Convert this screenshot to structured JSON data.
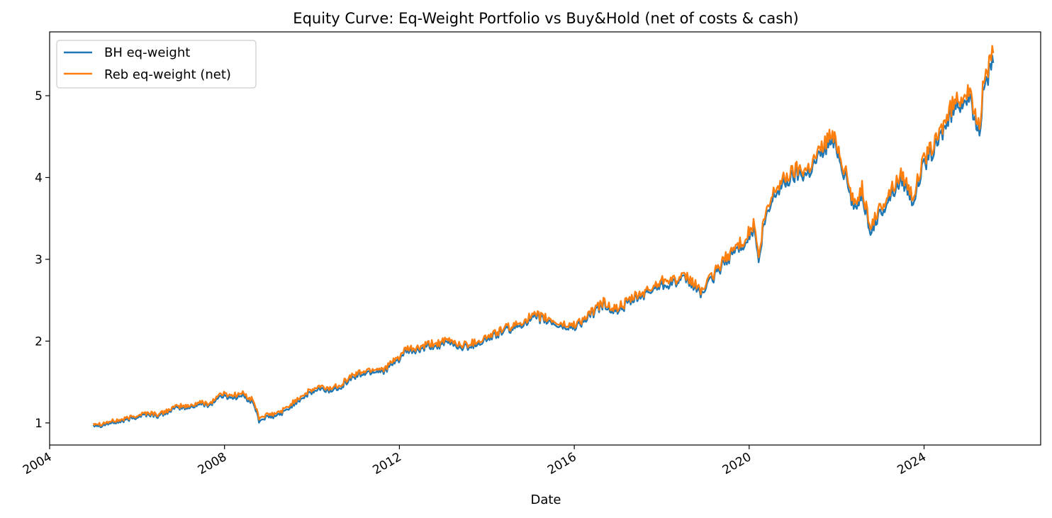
{
  "chart_data": {
    "type": "line",
    "title": "Equity Curve: Eq-Weight Portfolio vs Buy&Hold (net of costs & cash)",
    "xlabel": "Date",
    "ylabel": "",
    "xlim": [
      "2004-01-01",
      "2026-09-01"
    ],
    "ylim": [
      0.73,
      5.78
    ],
    "x_ticks": [
      "2004",
      "2008",
      "2012",
      "2016",
      "2020",
      "2024"
    ],
    "y_ticks": [
      1,
      2,
      3,
      4,
      5
    ],
    "grid": false,
    "legend_position": "top-left",
    "series": [
      {
        "name": "BH eq-weight",
        "color": "#1f77b4",
        "points": [
          [
            "2005-01-01",
            0.98
          ],
          [
            "2005-03-01",
            0.97
          ],
          [
            "2005-06-01",
            1.0
          ],
          [
            "2005-09-01",
            1.02
          ],
          [
            "2005-12-01",
            1.06
          ],
          [
            "2006-03-01",
            1.1
          ],
          [
            "2006-05-01",
            1.1
          ],
          [
            "2006-07-01",
            1.08
          ],
          [
            "2006-10-01",
            1.15
          ],
          [
            "2007-01-01",
            1.19
          ],
          [
            "2007-03-01",
            1.18
          ],
          [
            "2007-06-01",
            1.23
          ],
          [
            "2007-09-01",
            1.22
          ],
          [
            "2007-12-01",
            1.33
          ],
          [
            "2008-03-01",
            1.31
          ],
          [
            "2008-06-01",
            1.33
          ],
          [
            "2008-09-01",
            1.24
          ],
          [
            "2008-10-15",
            1.02
          ],
          [
            "2008-12-01",
            1.06
          ],
          [
            "2009-03-01",
            1.08
          ],
          [
            "2009-06-01",
            1.15
          ],
          [
            "2009-09-01",
            1.27
          ],
          [
            "2009-12-01",
            1.35
          ],
          [
            "2010-03-01",
            1.41
          ],
          [
            "2010-06-01",
            1.39
          ],
          [
            "2010-09-01",
            1.45
          ],
          [
            "2010-12-01",
            1.55
          ],
          [
            "2011-03-01",
            1.6
          ],
          [
            "2011-06-01",
            1.63
          ],
          [
            "2011-09-01",
            1.64
          ],
          [
            "2011-12-01",
            1.74
          ],
          [
            "2012-03-01",
            1.87
          ],
          [
            "2012-06-01",
            1.88
          ],
          [
            "2012-09-01",
            1.93
          ],
          [
            "2012-12-01",
            1.95
          ],
          [
            "2013-03-01",
            1.98
          ],
          [
            "2013-06-01",
            1.92
          ],
          [
            "2013-09-01",
            1.95
          ],
          [
            "2013-12-01",
            2.0
          ],
          [
            "2014-03-01",
            2.06
          ],
          [
            "2014-06-01",
            2.13
          ],
          [
            "2014-09-01",
            2.16
          ],
          [
            "2014-12-01",
            2.25
          ],
          [
            "2015-03-01",
            2.28
          ],
          [
            "2015-06-01",
            2.24
          ],
          [
            "2015-09-01",
            2.18
          ],
          [
            "2015-12-01",
            2.16
          ],
          [
            "2016-03-01",
            2.22
          ],
          [
            "2016-06-01",
            2.33
          ],
          [
            "2016-09-01",
            2.45
          ],
          [
            "2016-12-01",
            2.36
          ],
          [
            "2017-03-01",
            2.43
          ],
          [
            "2017-06-01",
            2.52
          ],
          [
            "2017-09-01",
            2.58
          ],
          [
            "2017-12-01",
            2.68
          ],
          [
            "2018-02-01",
            2.7
          ],
          [
            "2018-05-01",
            2.72
          ],
          [
            "2018-08-01",
            2.75
          ],
          [
            "2018-12-01",
            2.58
          ],
          [
            "2019-03-01",
            2.76
          ],
          [
            "2019-06-01",
            2.95
          ],
          [
            "2019-09-01",
            3.1
          ],
          [
            "2019-12-01",
            3.22
          ],
          [
            "2020-02-15",
            3.38
          ],
          [
            "2020-03-20",
            2.93
          ],
          [
            "2020-05-01",
            3.4
          ],
          [
            "2020-08-01",
            3.8
          ],
          [
            "2020-11-01",
            3.95
          ],
          [
            "2021-02-01",
            4.05
          ],
          [
            "2021-05-01",
            4.05
          ],
          [
            "2021-08-01",
            4.25
          ],
          [
            "2021-11-01",
            4.45
          ],
          [
            "2022-01-01",
            4.38
          ],
          [
            "2022-03-01",
            4.08
          ],
          [
            "2022-06-01",
            3.6
          ],
          [
            "2022-08-01",
            3.85
          ],
          [
            "2022-10-01",
            3.33
          ],
          [
            "2023-01-01",
            3.55
          ],
          [
            "2023-04-01",
            3.8
          ],
          [
            "2023-07-01",
            3.98
          ],
          [
            "2023-10-01",
            3.72
          ],
          [
            "2024-01-01",
            4.15
          ],
          [
            "2024-04-01",
            4.35
          ],
          [
            "2024-07-01",
            4.65
          ],
          [
            "2024-10-01",
            4.9
          ],
          [
            "2025-01-01",
            4.97
          ],
          [
            "2025-04-08",
            4.58
          ],
          [
            "2025-05-15",
            5.12
          ],
          [
            "2025-08-01",
            5.4
          ]
        ]
      },
      {
        "name": "Reb eq-weight (net)",
        "color": "#ff7f0e",
        "points": [
          [
            "2005-01-01",
            1.0
          ],
          [
            "2005-03-01",
            0.99
          ],
          [
            "2005-06-01",
            1.02
          ],
          [
            "2005-09-01",
            1.04
          ],
          [
            "2005-12-01",
            1.08
          ],
          [
            "2006-03-01",
            1.12
          ],
          [
            "2006-05-01",
            1.12
          ],
          [
            "2006-07-01",
            1.1
          ],
          [
            "2006-10-01",
            1.17
          ],
          [
            "2007-01-01",
            1.21
          ],
          [
            "2007-03-01",
            1.2
          ],
          [
            "2007-06-01",
            1.25
          ],
          [
            "2007-09-01",
            1.24
          ],
          [
            "2007-12-01",
            1.36
          ],
          [
            "2008-03-01",
            1.34
          ],
          [
            "2008-06-01",
            1.36
          ],
          [
            "2008-09-01",
            1.27
          ],
          [
            "2008-10-15",
            1.06
          ],
          [
            "2008-12-01",
            1.09
          ],
          [
            "2009-03-01",
            1.11
          ],
          [
            "2009-06-01",
            1.18
          ],
          [
            "2009-09-01",
            1.3
          ],
          [
            "2009-12-01",
            1.38
          ],
          [
            "2010-03-01",
            1.44
          ],
          [
            "2010-06-01",
            1.42
          ],
          [
            "2010-09-01",
            1.48
          ],
          [
            "2010-12-01",
            1.58
          ],
          [
            "2011-03-01",
            1.63
          ],
          [
            "2011-06-01",
            1.66
          ],
          [
            "2011-09-01",
            1.67
          ],
          [
            "2011-12-01",
            1.77
          ],
          [
            "2012-03-01",
            1.9
          ],
          [
            "2012-06-01",
            1.91
          ],
          [
            "2012-09-01",
            1.96
          ],
          [
            "2012-12-01",
            1.98
          ],
          [
            "2013-03-01",
            2.01
          ],
          [
            "2013-06-01",
            1.95
          ],
          [
            "2013-09-01",
            1.98
          ],
          [
            "2013-12-01",
            2.03
          ],
          [
            "2014-03-01",
            2.09
          ],
          [
            "2014-06-01",
            2.16
          ],
          [
            "2014-09-01",
            2.19
          ],
          [
            "2014-12-01",
            2.28
          ],
          [
            "2015-03-01",
            2.31
          ],
          [
            "2015-06-01",
            2.27
          ],
          [
            "2015-09-01",
            2.21
          ],
          [
            "2015-12-01",
            2.19
          ],
          [
            "2016-03-01",
            2.25
          ],
          [
            "2016-06-01",
            2.36
          ],
          [
            "2016-09-01",
            2.48
          ],
          [
            "2016-12-01",
            2.39
          ],
          [
            "2017-03-01",
            2.46
          ],
          [
            "2017-06-01",
            2.55
          ],
          [
            "2017-09-01",
            2.61
          ],
          [
            "2017-12-01",
            2.71
          ],
          [
            "2018-02-01",
            2.78
          ],
          [
            "2018-05-01",
            2.75
          ],
          [
            "2018-08-01",
            2.78
          ],
          [
            "2018-12-01",
            2.62
          ],
          [
            "2019-03-01",
            2.8
          ],
          [
            "2019-06-01",
            2.99
          ],
          [
            "2019-09-01",
            3.14
          ],
          [
            "2019-12-01",
            3.26
          ],
          [
            "2020-02-15",
            3.44
          ],
          [
            "2020-03-20",
            2.99
          ],
          [
            "2020-05-01",
            3.46
          ],
          [
            "2020-08-01",
            3.86
          ],
          [
            "2020-11-01",
            4.01
          ],
          [
            "2021-02-01",
            4.11
          ],
          [
            "2021-05-01",
            4.11
          ],
          [
            "2021-08-01",
            4.31
          ],
          [
            "2021-11-01",
            4.52
          ],
          [
            "2022-01-01",
            4.44
          ],
          [
            "2022-03-01",
            4.14
          ],
          [
            "2022-06-01",
            3.66
          ],
          [
            "2022-08-01",
            3.91
          ],
          [
            "2022-10-01",
            3.4
          ],
          [
            "2023-01-01",
            3.62
          ],
          [
            "2023-04-01",
            3.86
          ],
          [
            "2023-07-01",
            4.05
          ],
          [
            "2023-10-01",
            3.78
          ],
          [
            "2024-01-01",
            4.22
          ],
          [
            "2024-04-01",
            4.42
          ],
          [
            "2024-07-01",
            4.72
          ],
          [
            "2024-10-01",
            4.97
          ],
          [
            "2025-01-01",
            5.04
          ],
          [
            "2025-04-08",
            4.66
          ],
          [
            "2025-05-15",
            5.2
          ],
          [
            "2025-08-01",
            5.52
          ]
        ]
      }
    ]
  }
}
